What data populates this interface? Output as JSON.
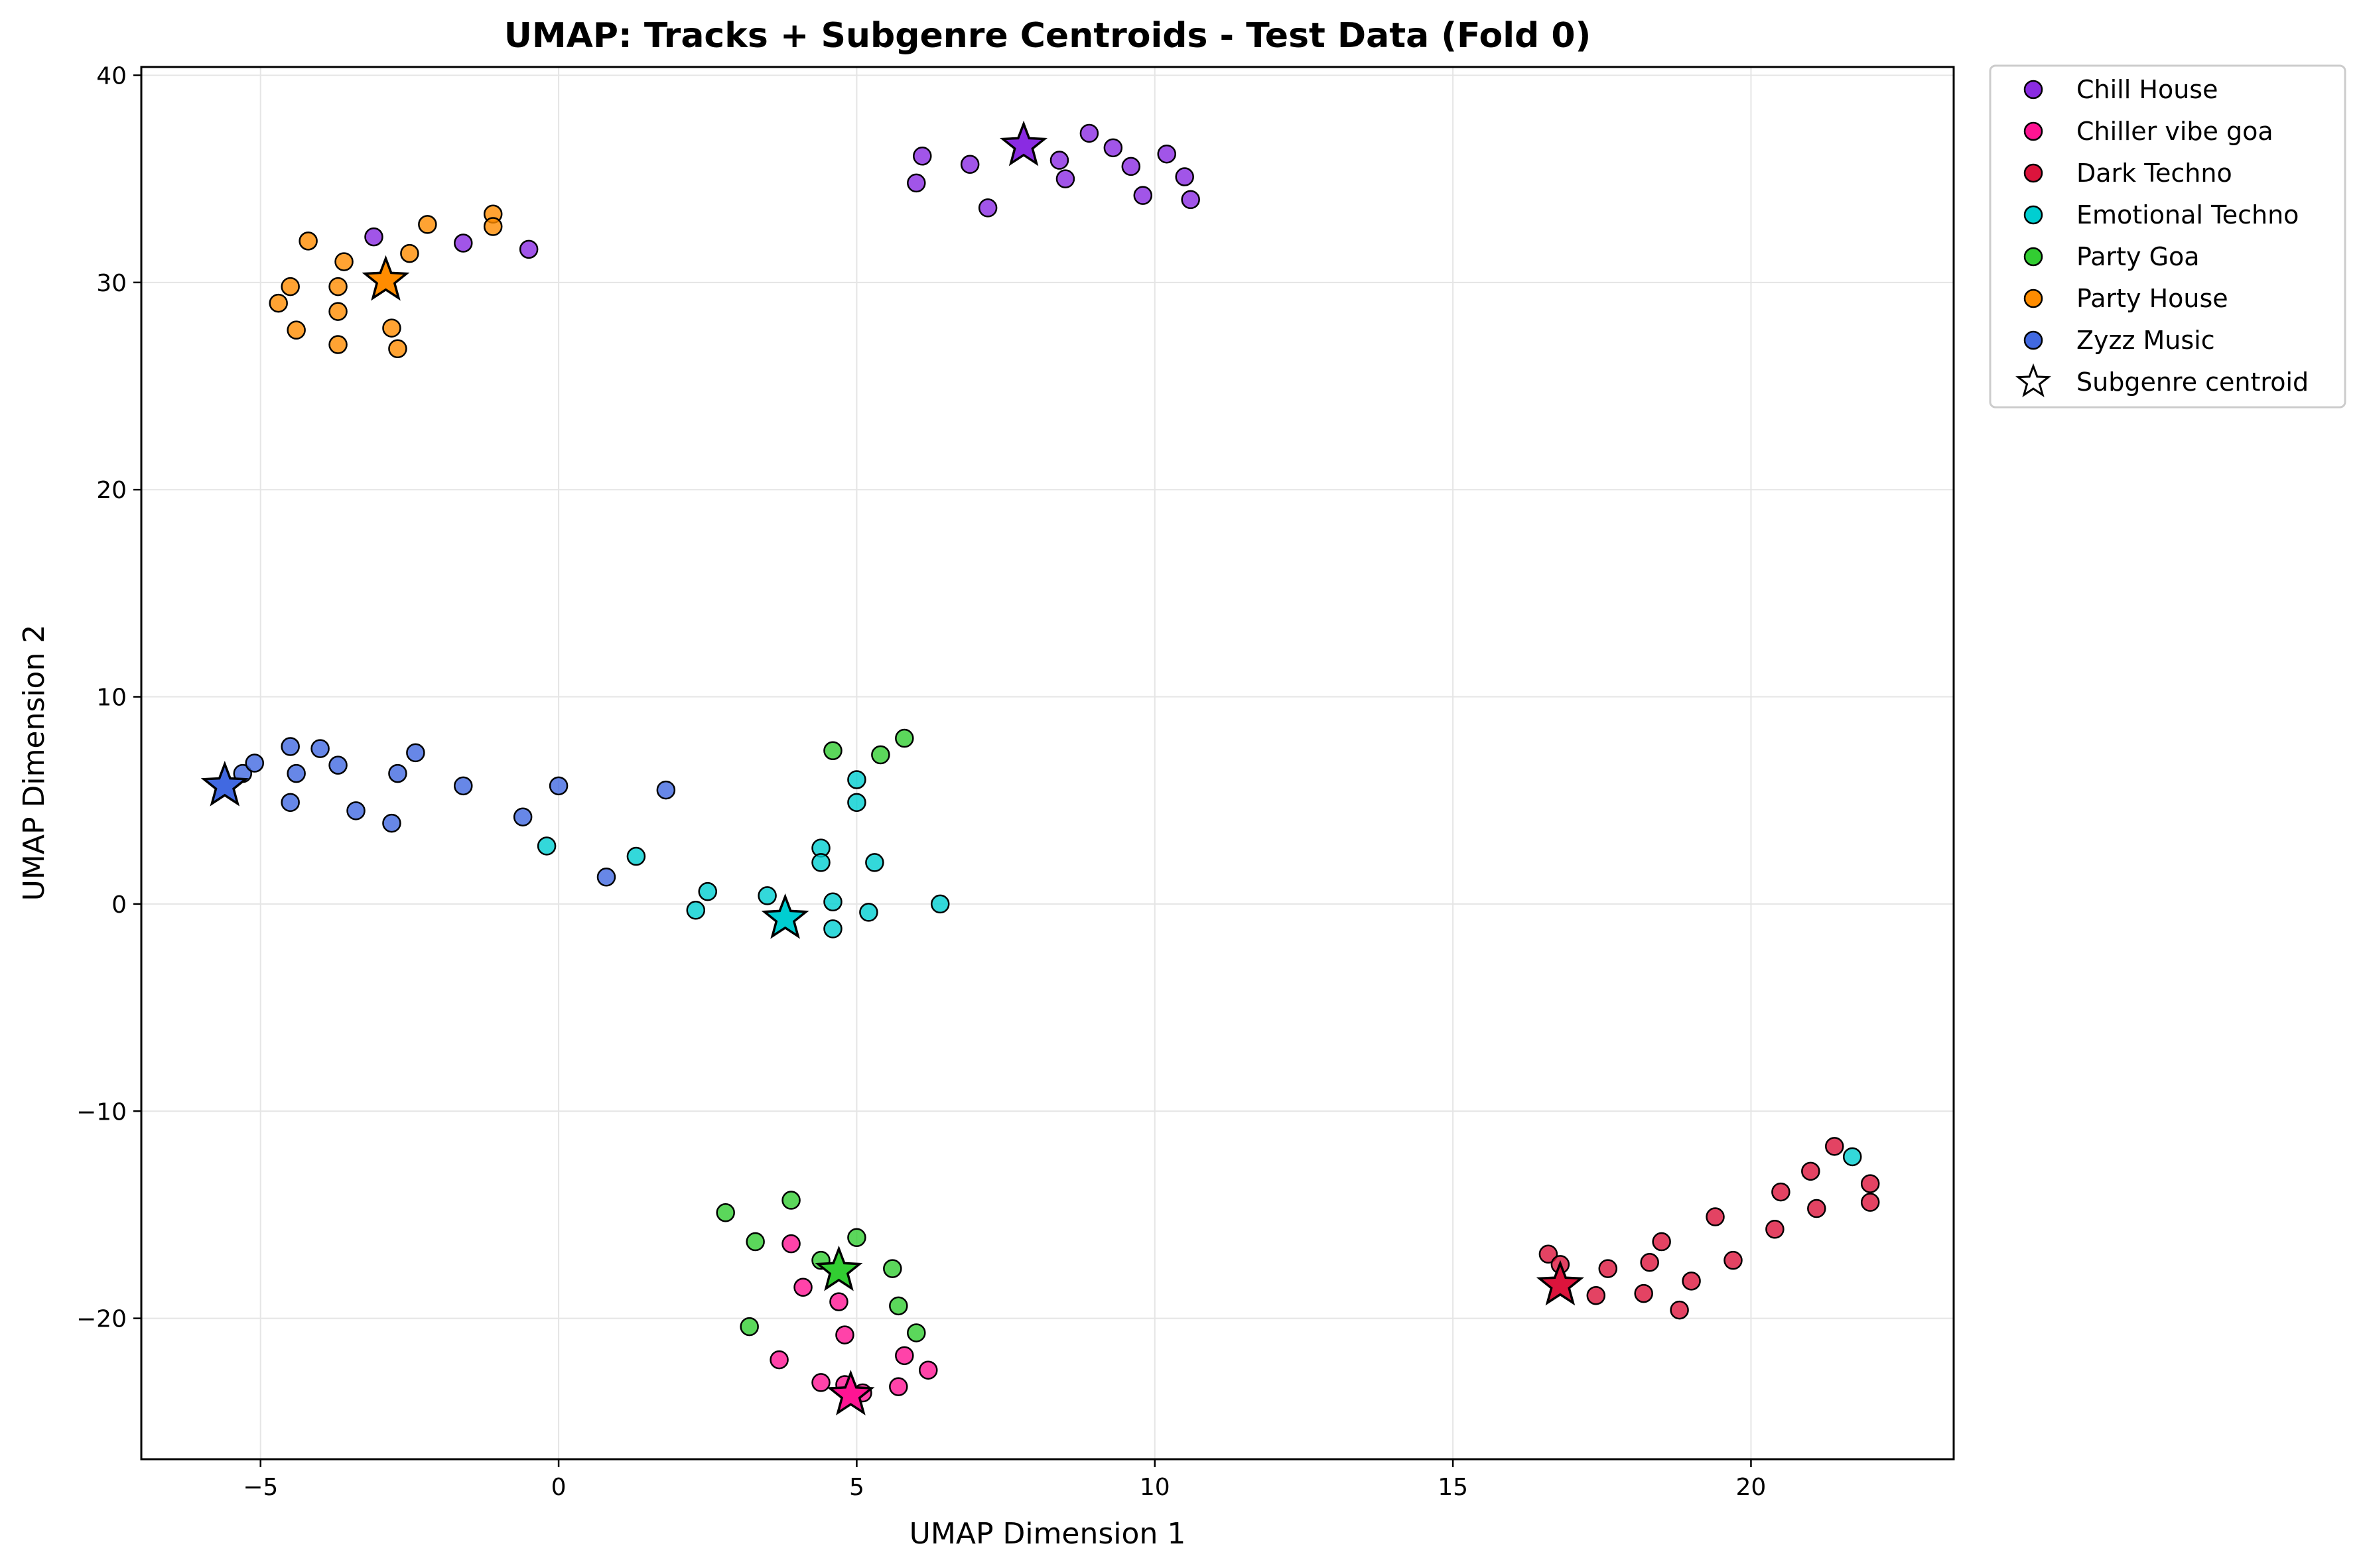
{
  "chart_data": {
    "type": "scatter",
    "title": "UMAP: Tracks + Subgenre Centroids - Test Data (Fold 0)",
    "xlabel": "UMAP Dimension 1",
    "ylabel": "UMAP Dimension 2",
    "xlim": [
      -7,
      23.4
    ],
    "ylim": [
      -26.8,
      40.4
    ],
    "xticks": [
      -5,
      0,
      5,
      10,
      15,
      20
    ],
    "yticks": [
      -20,
      -10,
      0,
      10,
      20,
      30,
      40
    ],
    "xtick_labels": [
      "−5",
      "0",
      "5",
      "10",
      "15",
      "20"
    ],
    "ytick_labels": [
      "−20",
      "−10",
      "0",
      "10",
      "20",
      "30",
      "40"
    ],
    "grid": true,
    "legend_position": "outside-right-top",
    "centroid_legend_label": "Subgenre centroid",
    "series": [
      {
        "name": "Chill House",
        "color": "#8a2be2",
        "centroid": [
          7.8,
          36.6
        ],
        "points": [
          [
            6.0,
            34.8
          ],
          [
            6.1,
            36.1
          ],
          [
            6.9,
            35.7
          ],
          [
            7.2,
            33.6
          ],
          [
            8.4,
            35.9
          ],
          [
            8.5,
            35.0
          ],
          [
            8.9,
            37.2
          ],
          [
            9.3,
            36.5
          ],
          [
            9.6,
            35.6
          ],
          [
            9.8,
            34.2
          ],
          [
            10.2,
            36.2
          ],
          [
            10.5,
            35.1
          ],
          [
            10.6,
            34.0
          ],
          [
            -3.1,
            32.2
          ],
          [
            -1.6,
            31.9
          ],
          [
            -0.5,
            31.6
          ]
        ]
      },
      {
        "name": "Chiller vibe goa",
        "color": "#ff1493",
        "centroid": [
          4.9,
          -23.7
        ],
        "points": [
          [
            3.9,
            -16.4
          ],
          [
            4.1,
            -18.5
          ],
          [
            3.7,
            -22.0
          ],
          [
            4.4,
            -23.1
          ],
          [
            4.7,
            -19.2
          ],
          [
            4.8,
            -20.8
          ],
          [
            4.8,
            -23.2
          ],
          [
            5.1,
            -23.6
          ],
          [
            5.7,
            -23.3
          ],
          [
            5.8,
            -21.8
          ],
          [
            6.2,
            -22.5
          ]
        ]
      },
      {
        "name": "Dark Techno",
        "color": "#dc143c",
        "centroid": [
          16.8,
          -18.4
        ],
        "points": [
          [
            16.6,
            -16.9
          ],
          [
            16.8,
            -17.4
          ],
          [
            17.4,
            -18.9
          ],
          [
            17.6,
            -17.6
          ],
          [
            18.2,
            -18.8
          ],
          [
            18.3,
            -17.3
          ],
          [
            18.5,
            -16.3
          ],
          [
            18.8,
            -19.6
          ],
          [
            19.0,
            -18.2
          ],
          [
            19.4,
            -15.1
          ],
          [
            19.7,
            -17.2
          ],
          [
            20.4,
            -15.7
          ],
          [
            20.5,
            -13.9
          ],
          [
            21.0,
            -12.9
          ],
          [
            21.1,
            -14.7
          ],
          [
            21.4,
            -11.7
          ],
          [
            22.0,
            -13.5
          ],
          [
            22.0,
            -14.4
          ]
        ]
      },
      {
        "name": "Emotional Techno",
        "color": "#00ced1",
        "centroid": [
          3.8,
          -0.7
        ],
        "points": [
          [
            -0.2,
            2.8
          ],
          [
            1.3,
            2.3
          ],
          [
            2.3,
            -0.3
          ],
          [
            2.5,
            0.6
          ],
          [
            3.5,
            0.4
          ],
          [
            4.4,
            2.7
          ],
          [
            4.4,
            2.0
          ],
          [
            4.6,
            0.1
          ],
          [
            4.6,
            -1.2
          ],
          [
            5.0,
            6.0
          ],
          [
            5.0,
            4.9
          ],
          [
            5.2,
            -0.4
          ],
          [
            5.3,
            2.0
          ],
          [
            6.4,
            0.0
          ],
          [
            21.7,
            -12.2
          ]
        ]
      },
      {
        "name": "Party Goa",
        "color": "#32cd32",
        "centroid": [
          4.7,
          -17.7
        ],
        "points": [
          [
            2.8,
            -14.9
          ],
          [
            3.2,
            -20.4
          ],
          [
            3.3,
            -16.3
          ],
          [
            3.9,
            -14.3
          ],
          [
            4.4,
            -17.2
          ],
          [
            5.0,
            -16.1
          ],
          [
            5.6,
            -17.6
          ],
          [
            5.7,
            -19.4
          ],
          [
            6.0,
            -20.7
          ],
          [
            4.6,
            7.4
          ],
          [
            5.4,
            7.2
          ],
          [
            5.8,
            8.0
          ]
        ]
      },
      {
        "name": "Party House",
        "color": "#ff8c00",
        "centroid": [
          -2.9,
          30.1
        ],
        "points": [
          [
            -4.7,
            29.0
          ],
          [
            -4.5,
            29.8
          ],
          [
            -4.4,
            27.7
          ],
          [
            -4.2,
            32.0
          ],
          [
            -3.7,
            29.8
          ],
          [
            -3.7,
            28.6
          ],
          [
            -3.7,
            27.0
          ],
          [
            -3.6,
            31.0
          ],
          [
            -2.8,
            27.8
          ],
          [
            -2.7,
            26.8
          ],
          [
            -2.5,
            31.4
          ],
          [
            -2.2,
            32.8
          ],
          [
            -1.1,
            33.3
          ],
          [
            -1.1,
            32.7
          ]
        ]
      },
      {
        "name": "Zyzz Music",
        "color": "#4169e1",
        "centroid": [
          -5.6,
          5.7
        ],
        "points": [
          [
            -5.3,
            6.3
          ],
          [
            -5.1,
            6.8
          ],
          [
            -4.5,
            7.6
          ],
          [
            -4.4,
            6.3
          ],
          [
            -4.5,
            4.9
          ],
          [
            -4.0,
            7.5
          ],
          [
            -3.7,
            6.7
          ],
          [
            -3.4,
            4.5
          ],
          [
            -2.8,
            3.9
          ],
          [
            -2.7,
            6.3
          ],
          [
            -2.4,
            7.3
          ],
          [
            -1.6,
            5.7
          ],
          [
            -0.6,
            4.2
          ],
          [
            0.0,
            5.7
          ],
          [
            0.8,
            1.3
          ],
          [
            1.8,
            5.5
          ]
        ]
      }
    ]
  }
}
